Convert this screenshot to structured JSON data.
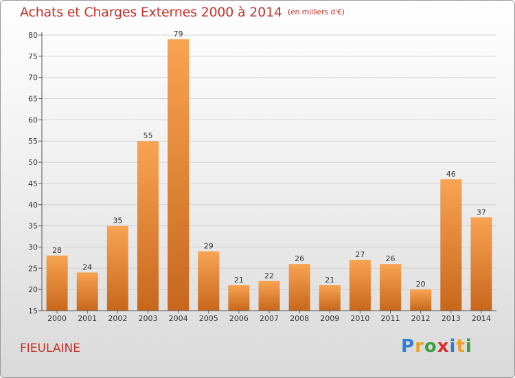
{
  "header": {
    "title": "Achats et Charges Externes 2000 à 2014",
    "subtitle": "(en milliers d'€)"
  },
  "footer": {
    "city": "FIEULAINE"
  },
  "logo": {
    "letters": [
      "P",
      "r",
      "o",
      "x",
      "i",
      "t",
      "i"
    ],
    "colors": [
      "#2e7fd0",
      "#f0a020",
      "#3aa040",
      "#d83030",
      "#2e7fd0",
      "#f0a020",
      "#3aa040"
    ]
  },
  "colors": {
    "bar_light": "#f8a452",
    "bar_dark": "#c8671c",
    "accent": "#c2322a"
  },
  "chart_data": {
    "type": "bar",
    "title": "Achats et Charges Externes 2000 à 2014",
    "subtitle": "(en milliers d'€)",
    "categories": [
      "2000",
      "2001",
      "2002",
      "2003",
      "2004",
      "2005",
      "2006",
      "2007",
      "2008",
      "2009",
      "2010",
      "2011",
      "2012",
      "2013",
      "2014"
    ],
    "values": [
      28,
      24,
      35,
      55,
      79,
      29,
      21,
      22,
      26,
      21,
      27,
      26,
      20,
      46,
      37
    ],
    "ylim": [
      15,
      80
    ],
    "yticks": [
      15,
      20,
      25,
      30,
      35,
      40,
      45,
      50,
      55,
      60,
      65,
      70,
      75,
      80
    ],
    "grid": true,
    "legend": "none"
  }
}
